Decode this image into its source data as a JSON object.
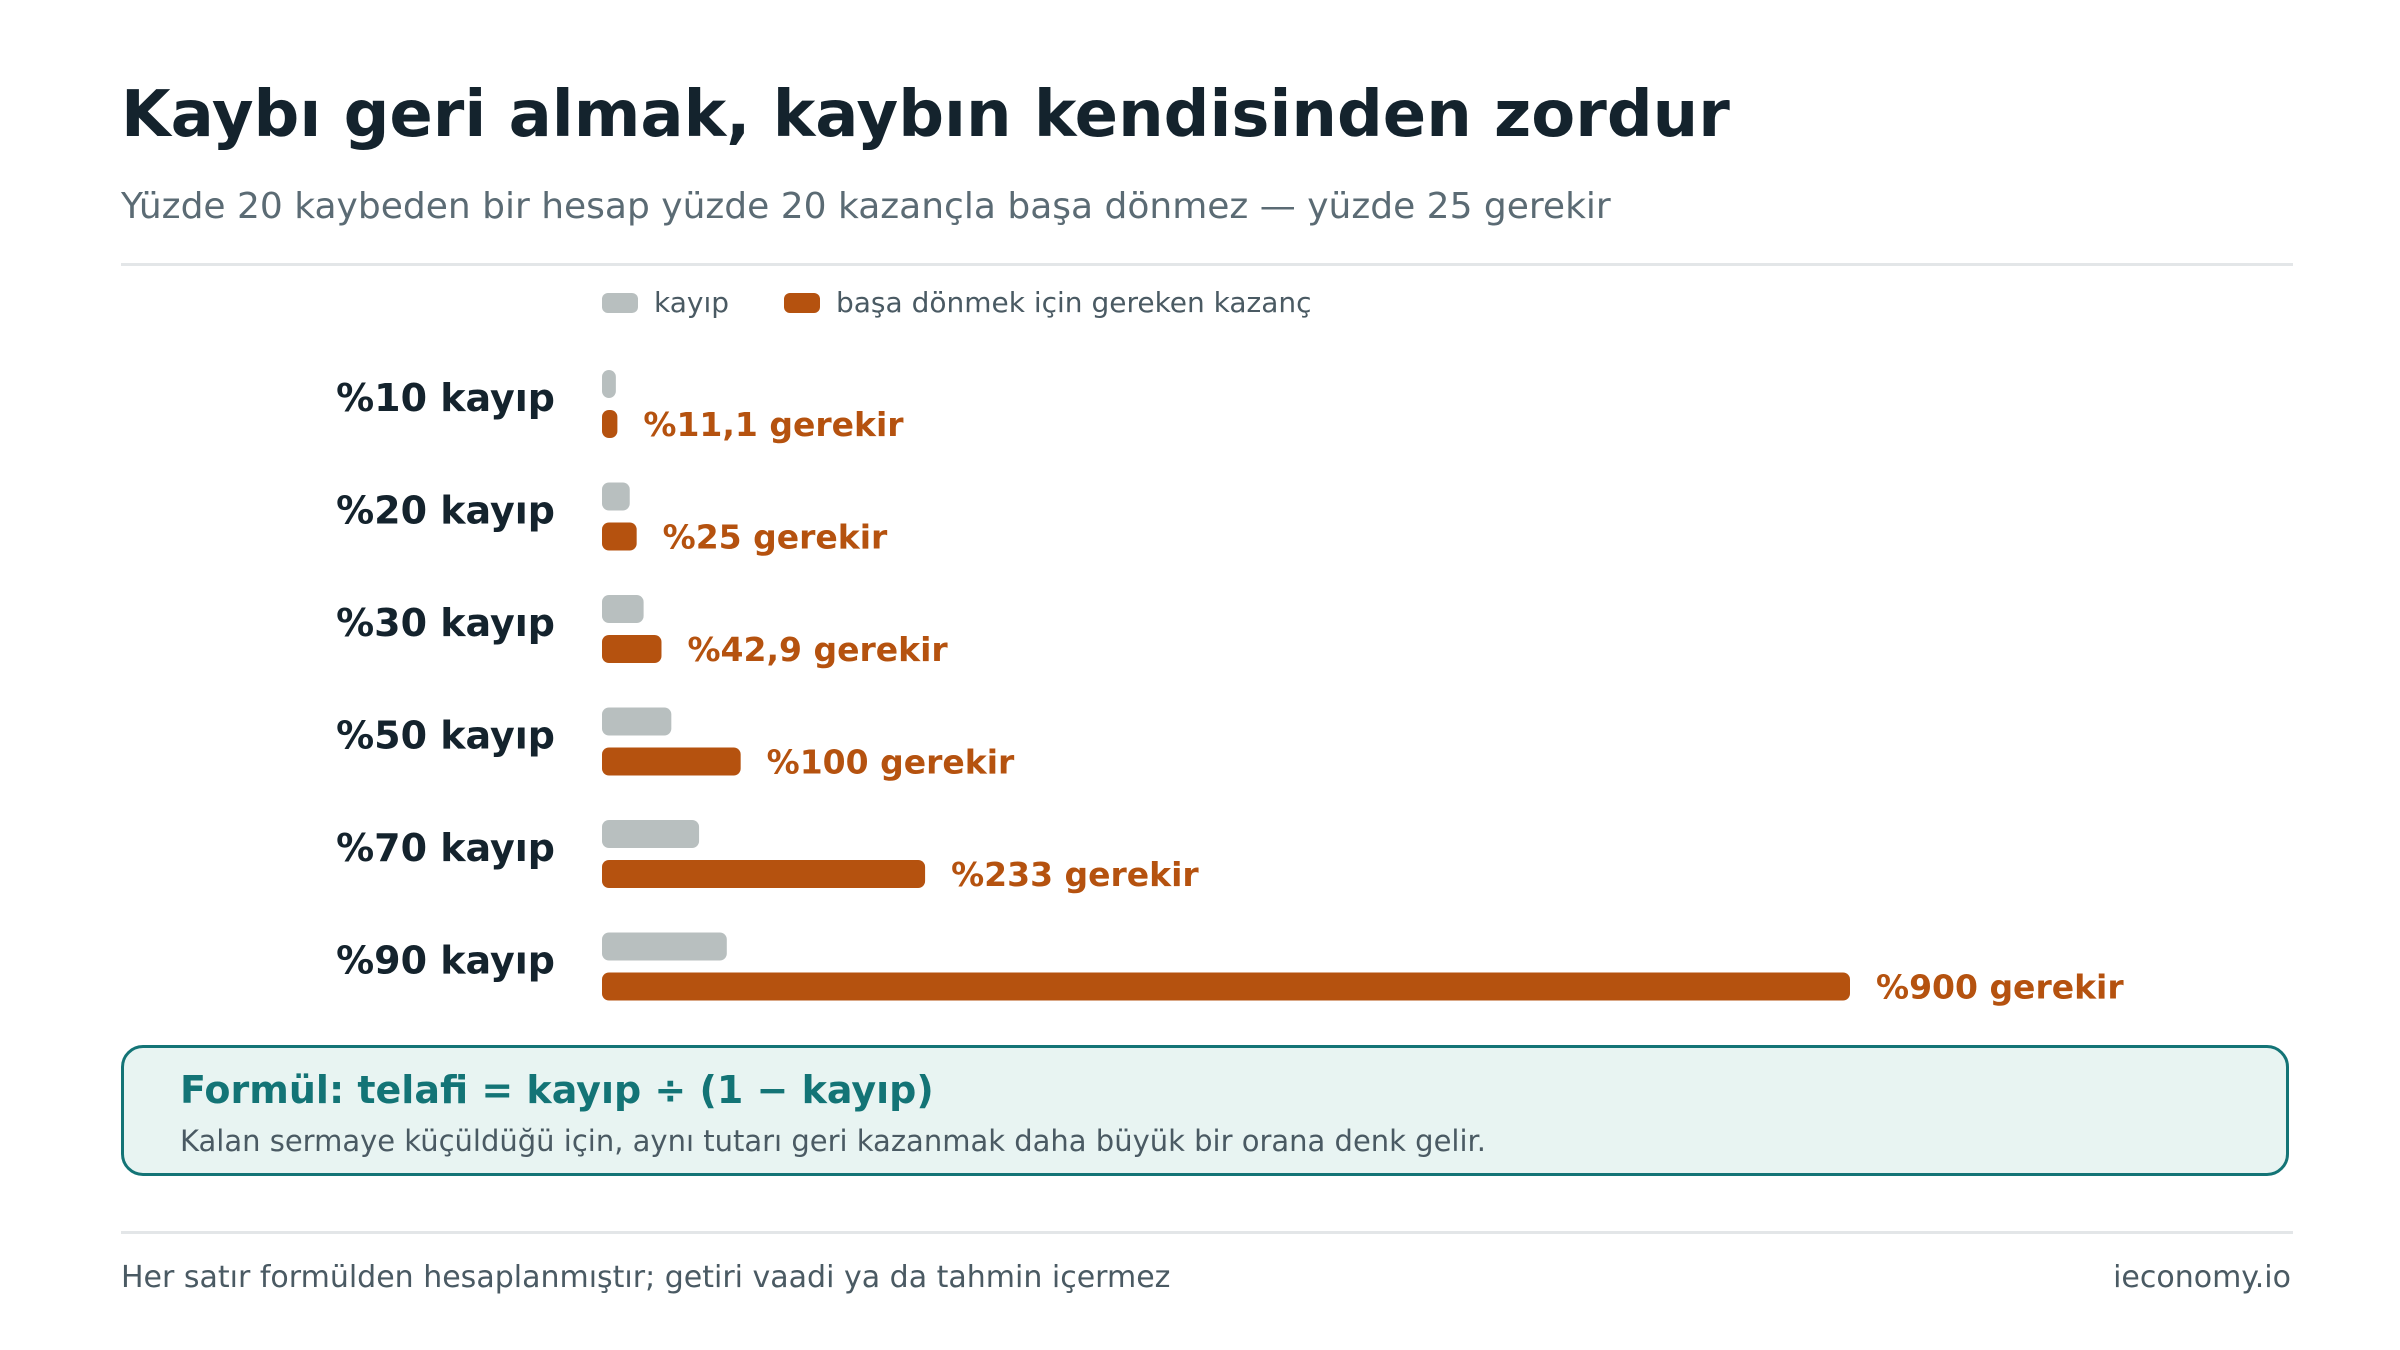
{
  "header": {
    "title": "Kaybı geri almak, kaybın kendisinden zordur",
    "subtitle": "Yüzde 20 kaybeden bir hesap yüzde 20 kazançla başa dönmez — yüzde 25 gerekir"
  },
  "colors": {
    "loss": "#b8bfbf",
    "gain": "#b5520f",
    "accent": "#137476"
  },
  "chart_data": {
    "type": "bar",
    "orientation": "horizontal",
    "categories": [
      "%10 kayıp",
      "%20 kayıp",
      "%30 kayıp",
      "%50 kayıp",
      "%70 kayıp",
      "%90 kayıp"
    ],
    "series": [
      {
        "name": "kayıp",
        "values": [
          10,
          20,
          30,
          50,
          70,
          90
        ]
      },
      {
        "name": "başa dönmek için gereken kazanç",
        "values": [
          11.1,
          25,
          42.9,
          100,
          233,
          900
        ]
      }
    ],
    "value_labels": [
      "%11,1 gerekir",
      "%25 gerekir",
      "%42,9 gerekir",
      "%100 gerekir",
      "%233 gerekir",
      "%900 gerekir"
    ],
    "legend_position": "top-left",
    "grid": false
  },
  "formula": {
    "title": "Formül: telafi = kayıp ÷ (1 − kayıp)",
    "note": "Kalan sermaye küçüldüğü için, aynı tutarı geri kazanmak daha büyük bir orana denk gelir."
  },
  "footer": {
    "note": "Her satır formülden hesaplanmıştır; getiri vaadi ya da tahmin içermez",
    "brand": "ieconomy.io"
  }
}
